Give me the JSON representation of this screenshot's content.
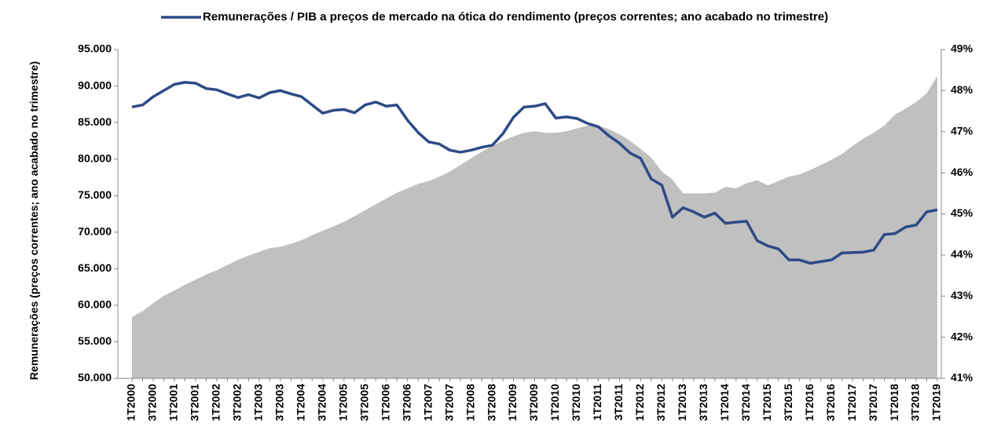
{
  "chart_data": {
    "type": "combo",
    "y_label": "Remunerações (preços correntes; ano acabado no trimestre)",
    "categories": [
      "1T2000",
      null,
      "3T2000",
      null,
      "1T2001",
      null,
      "3T2001",
      null,
      "1T2002",
      null,
      "3T2002",
      null,
      "1T2003",
      null,
      "3T2003",
      null,
      "1T2004",
      null,
      "3T2004",
      null,
      "1T2005",
      null,
      "3T2005",
      null,
      "1T2006",
      null,
      "3T2006",
      null,
      "1T2007",
      null,
      "3T2007",
      null,
      "1T2008",
      null,
      "3T2008",
      null,
      "1T2009",
      null,
      "3T2009",
      null,
      "1T2010",
      null,
      "3T2010",
      null,
      "1T2011",
      null,
      "3T2011",
      null,
      "1T2012",
      null,
      "3T2012",
      null,
      "1T2013",
      null,
      "3T2013",
      null,
      "1T2014",
      null,
      "3T2014",
      null,
      "1T2015",
      null,
      "3T2015",
      null,
      "1T2016",
      null,
      "3T2016",
      null,
      "1T2017",
      null,
      "3T2017",
      null,
      "1T2018",
      null,
      "3T2018",
      null,
      "1T2019"
    ],
    "ylim": [
      50000,
      95000
    ],
    "yticks": [
      {
        "value": 50000,
        "label": "50.000"
      },
      {
        "value": 55000,
        "label": "55.000"
      },
      {
        "value": 60000,
        "label": "60.000"
      },
      {
        "value": 65000,
        "label": "65.000"
      },
      {
        "value": 70000,
        "label": "70.000"
      },
      {
        "value": 75000,
        "label": "75.000"
      },
      {
        "value": 80000,
        "label": "80.000"
      },
      {
        "value": 85000,
        "label": "85.000"
      },
      {
        "value": 90000,
        "label": "90.000"
      },
      {
        "value": 95000,
        "label": "95.000"
      }
    ],
    "y2lim": [
      41,
      49
    ],
    "y2ticks": [
      {
        "value": 41,
        "label": "41%"
      },
      {
        "value": 42,
        "label": "42%"
      },
      {
        "value": 43,
        "label": "43%"
      },
      {
        "value": 44,
        "label": "44%"
      },
      {
        "value": 45,
        "label": "45%"
      },
      {
        "value": 46,
        "label": "46%"
      },
      {
        "value": 47,
        "label": "47%"
      },
      {
        "value": 48,
        "label": "48%"
      },
      {
        "value": 49,
        "label": "49%"
      }
    ],
    "series": [
      {
        "type": "area",
        "color": "#c0c0c0",
        "axis": "y",
        "values": [
          58400,
          59200,
          60300,
          61300,
          62000,
          62800,
          63500,
          64200,
          64800,
          65500,
          66200,
          66800,
          67300,
          67800,
          68000,
          68400,
          68900,
          69600,
          70200,
          70800,
          71400,
          72200,
          73000,
          73800,
          74600,
          75400,
          76000,
          76600,
          77000,
          77600,
          78300,
          79200,
          80100,
          81000,
          81800,
          82500,
          83100,
          83600,
          83800,
          83600,
          83600,
          83800,
          84200,
          84600,
          84600,
          84100,
          83400,
          82500,
          81400,
          80200,
          78300,
          77200,
          75300,
          75300,
          75300,
          75400,
          76200,
          76000,
          76700,
          77100,
          76400,
          77000,
          77600,
          77900,
          78500,
          79200,
          79900,
          80700,
          81800,
          82800,
          83600,
          84600,
          86100,
          86900,
          87800,
          89000,
          91400
        ]
      },
      {
        "type": "line",
        "name": "Remunerações / PIB a preços de mercado na ótica do rendimento (preços correntes; ano acabado no trimestre)",
        "color": "#2e4a87",
        "axis": "y2",
        "values": [
          47.6,
          47.65,
          47.85,
          48.0,
          48.15,
          48.2,
          48.18,
          48.05,
          48.02,
          47.92,
          47.83,
          47.9,
          47.82,
          47.95,
          48.0,
          47.92,
          47.85,
          47.65,
          47.45,
          47.52,
          47.54,
          47.46,
          47.65,
          47.72,
          47.62,
          47.65,
          47.28,
          46.98,
          46.75,
          46.7,
          46.55,
          46.5,
          46.55,
          46.62,
          46.67,
          46.95,
          47.35,
          47.6,
          47.62,
          47.68,
          47.33,
          47.36,
          47.32,
          47.2,
          47.12,
          46.9,
          46.72,
          46.48,
          46.35,
          45.85,
          45.7,
          44.92,
          45.15,
          45.05,
          44.92,
          45.02,
          44.77,
          44.8,
          44.82,
          44.35,
          44.22,
          44.15,
          43.88,
          43.88,
          43.8,
          43.84,
          43.88,
          44.05,
          44.06,
          44.07,
          44.12,
          44.5,
          44.52,
          44.68,
          44.73,
          45.05,
          45.1
        ]
      }
    ]
  }
}
